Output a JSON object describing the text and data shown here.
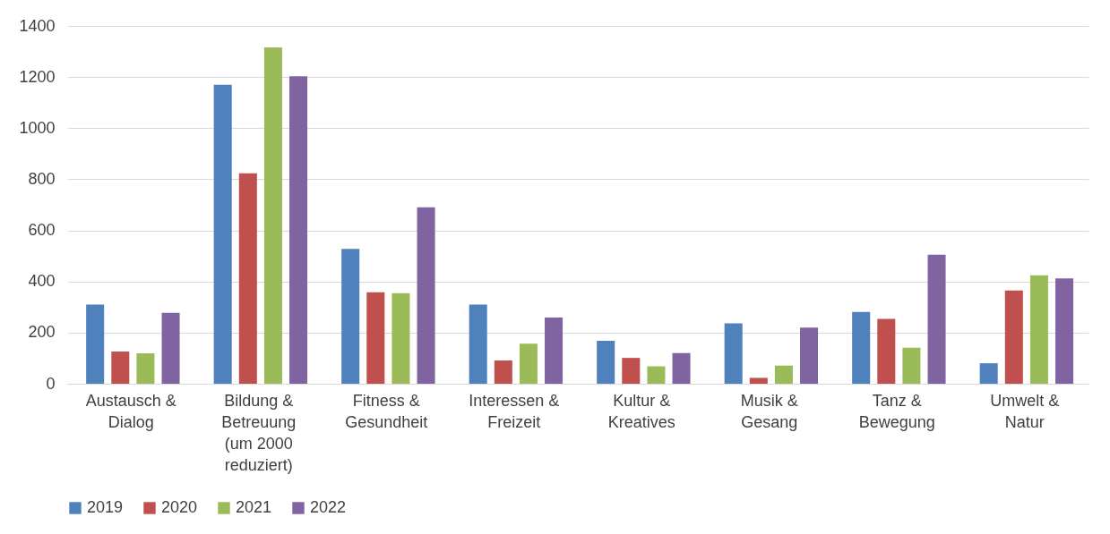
{
  "chart_data": {
    "type": "bar",
    "categories": [
      "Austausch & Dialog",
      "Bildung & Betreuung (um 2000 reduziert)",
      "Fitness & Gesundheit",
      "Interessen & Freizeit",
      "Kultur & Kreatives",
      "Musik & Gesang",
      "Tanz & Bewegung",
      "Umwelt & Natur"
    ],
    "series": [
      {
        "name": "2019",
        "color": "#4f81bd",
        "values": [
          310,
          1170,
          528,
          310,
          168,
          236,
          281,
          80
        ]
      },
      {
        "name": "2020",
        "color": "#c0504d",
        "values": [
          126,
          823,
          358,
          91,
          101,
          23,
          254,
          365
        ]
      },
      {
        "name": "2021",
        "color": "#9bbb59",
        "values": [
          119,
          1316,
          354,
          157,
          68,
          71,
          141,
          424
        ]
      },
      {
        "name": "2022",
        "color": "#8064a2",
        "values": [
          277,
          1203,
          690,
          259,
          120,
          220,
          505,
          412
        ]
      }
    ],
    "ylim": [
      0,
      1400
    ],
    "yticks": [
      0,
      200,
      400,
      600,
      800,
      1000,
      1200,
      1400
    ],
    "grid": "y",
    "legend": "bottom"
  }
}
